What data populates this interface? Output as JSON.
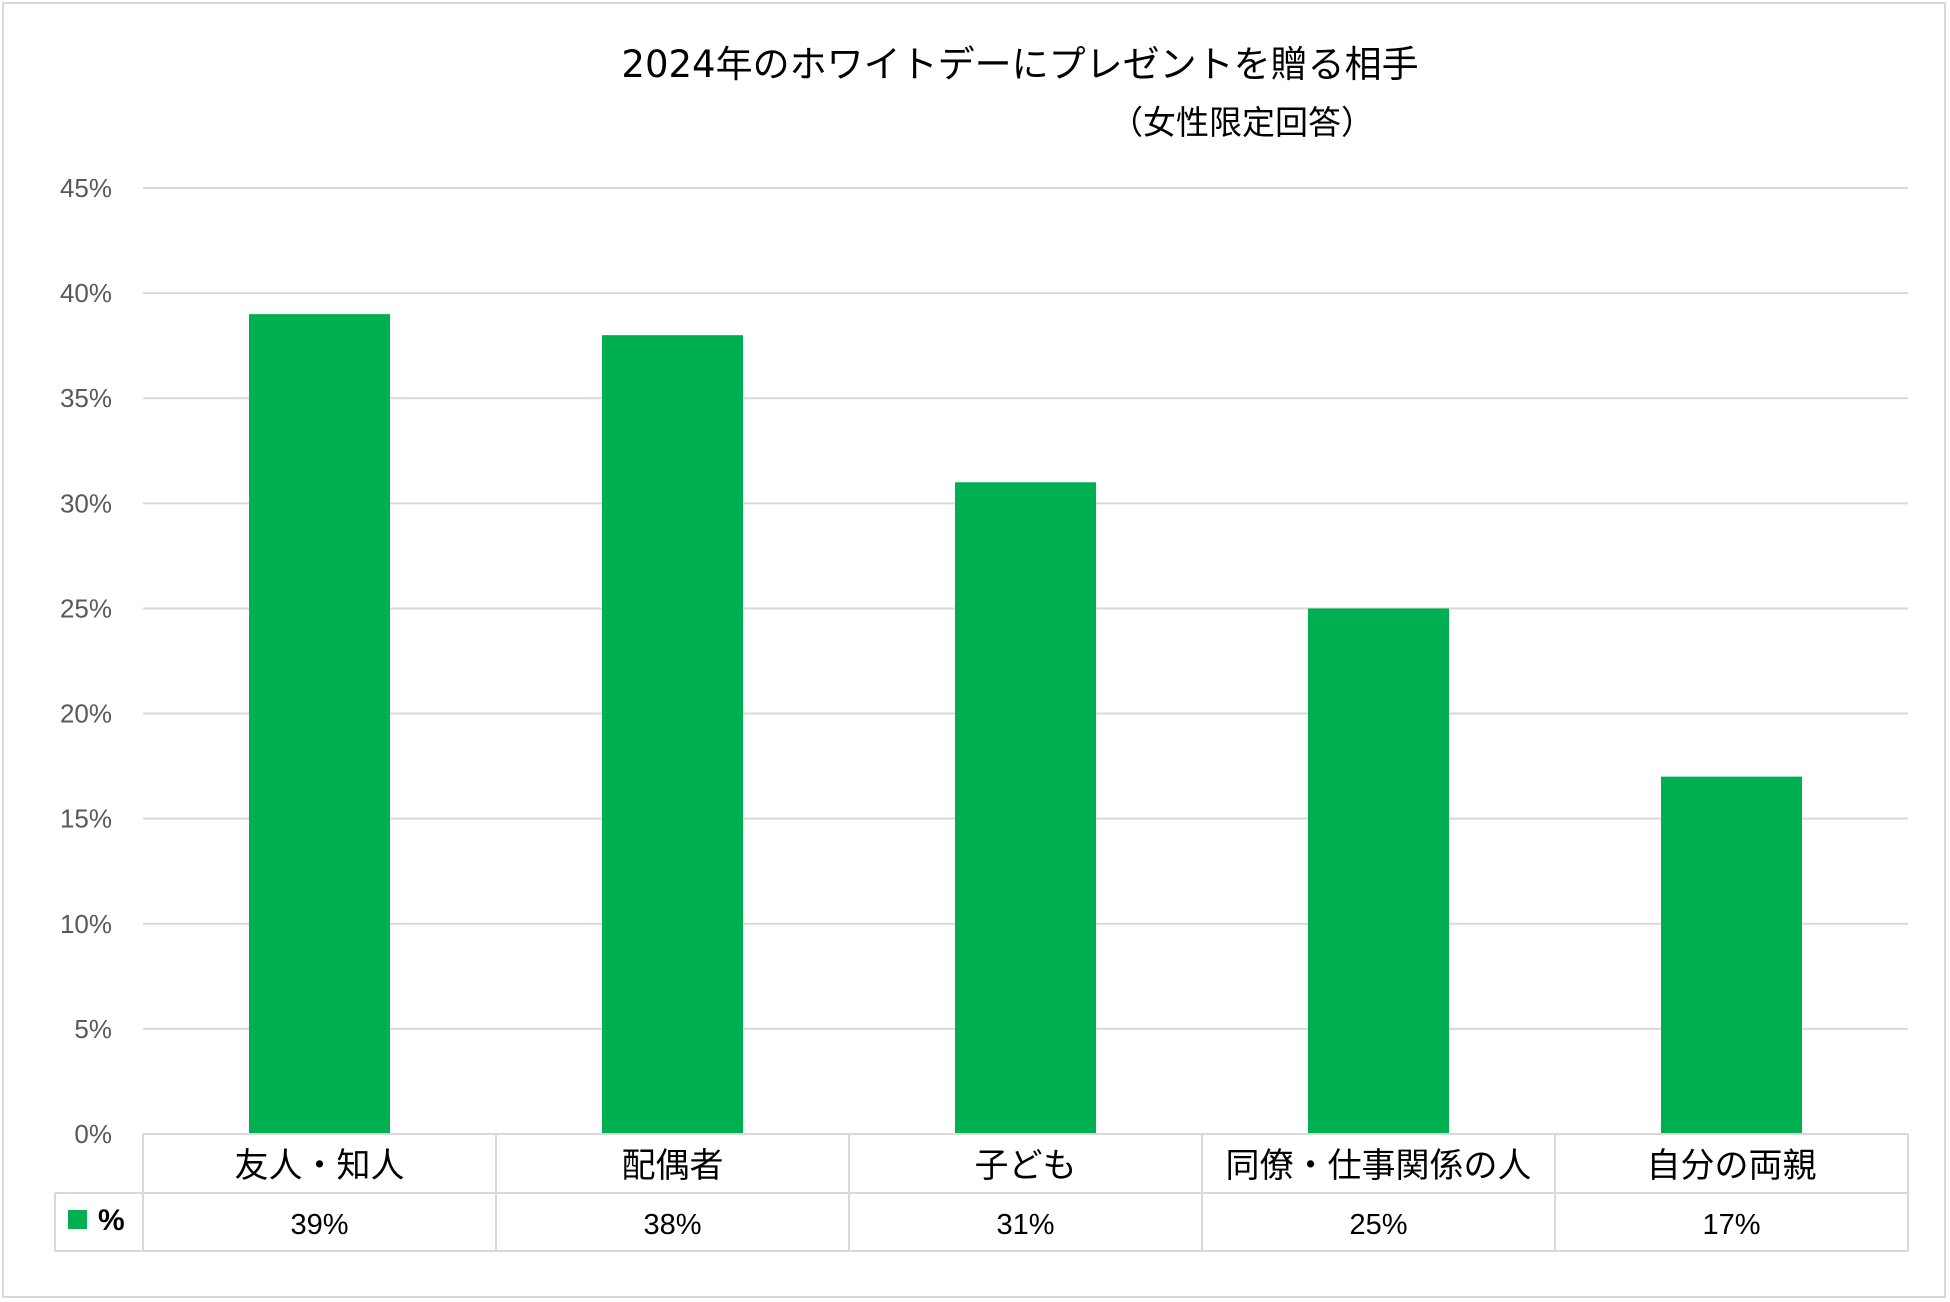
{
  "chart_data": {
    "type": "bar",
    "title": "2024年のホワイトデーにプレゼントを贈る相手",
    "subtitle": "（女性限定回答）",
    "categories": [
      "友人・知人",
      "配偶者",
      "子ども",
      "同僚・仕事関係の人",
      "自分の両親"
    ],
    "series": [
      {
        "name": "%",
        "values": [
          39,
          38,
          31,
          25,
          17
        ],
        "labels": [
          "39%",
          "38%",
          "31%",
          "25%",
          "17%"
        ],
        "color": "#00b050"
      }
    ],
    "ylim": [
      0,
      45
    ],
    "yticks": [
      "0%",
      "5%",
      "10%",
      "15%",
      "20%",
      "25%",
      "30%",
      "35%",
      "40%",
      "45%"
    ],
    "grid": true,
    "legend": "data-table-left",
    "data_table": true
  }
}
